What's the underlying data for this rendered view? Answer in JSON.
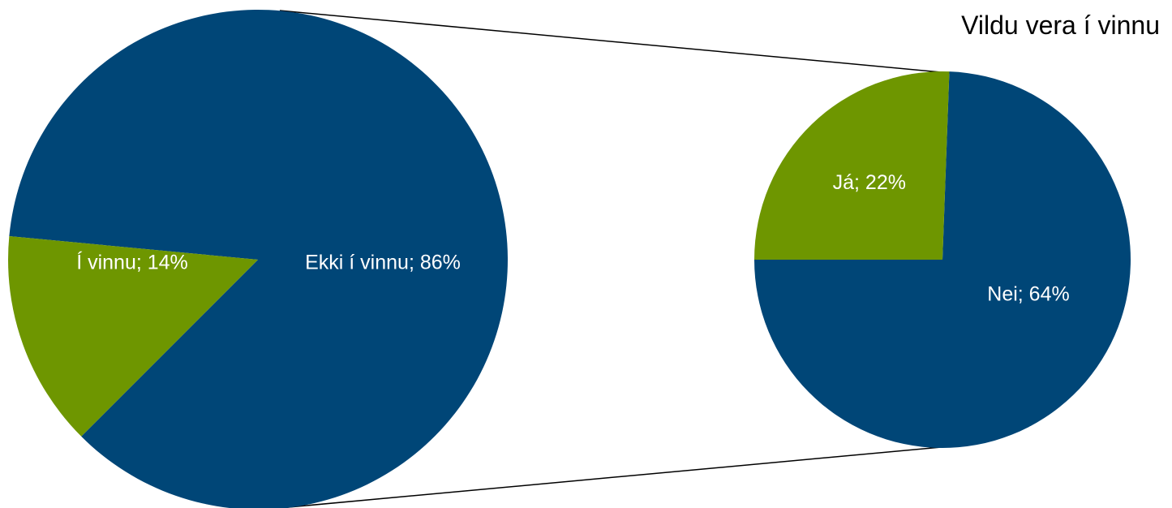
{
  "chart_data": {
    "type": "pie",
    "title": "Vildu vera í vinnu",
    "pies": [
      {
        "slices": [
          {
            "label": "Ekki í vinnu; 86%",
            "category": "Ekki í vinnu",
            "value": 86,
            "color": "#004677"
          },
          {
            "label": "Í vinnu; 14%",
            "category": "Í vinnu",
            "value": 14,
            "color": "#6E9600"
          }
        ]
      },
      {
        "slices": [
          {
            "label": "Nei; 64%",
            "category": "Nei",
            "value": 64,
            "color": "#004677"
          },
          {
            "label": "Já; 22%",
            "category": "Já",
            "value": 22,
            "color": "#6E9600"
          }
        ]
      }
    ]
  }
}
